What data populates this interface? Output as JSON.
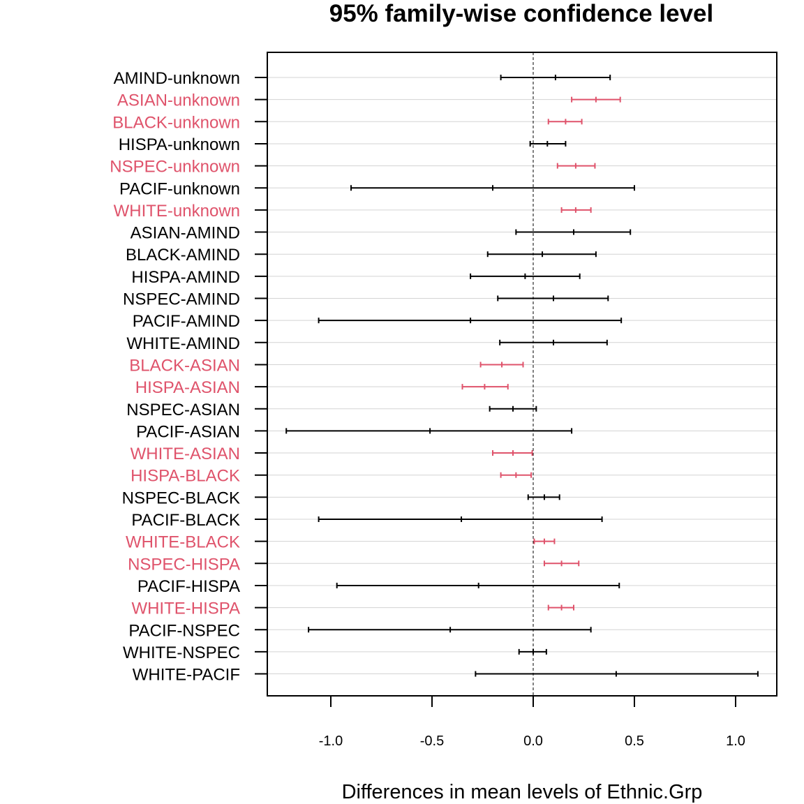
{
  "chart_data": {
    "type": "errorbar",
    "title": "95% family-wise confidence level",
    "xlabel": "Differences in mean levels of Ethnic.Grp",
    "ylabel": "",
    "xlim": [
      -1.31,
      1.2
    ],
    "xticks": [
      -1.0,
      -0.5,
      0.0,
      0.5,
      1.0
    ],
    "xtick_labels": [
      "-1.0",
      "-0.5",
      "0.0",
      "0.5",
      "1.0"
    ],
    "reference_line": 0.0,
    "grid": true,
    "colors": {
      "significant": "#DF536B",
      "nonsignificant": "#000000",
      "grid": "#D3D3D3"
    },
    "comparisons": [
      {
        "label": "AMIND-unknown",
        "diff": 0.11,
        "lwr": -0.16,
        "upr": 0.38,
        "significant": false
      },
      {
        "label": "ASIAN-unknown",
        "diff": 0.31,
        "lwr": 0.19,
        "upr": 0.43,
        "significant": true
      },
      {
        "label": "BLACK-unknown",
        "diff": 0.16,
        "lwr": 0.075,
        "upr": 0.24,
        "significant": true
      },
      {
        "label": "HISPA-unknown",
        "diff": 0.07,
        "lwr": -0.015,
        "upr": 0.16,
        "significant": false
      },
      {
        "label": "NSPEC-unknown",
        "diff": 0.21,
        "lwr": 0.12,
        "upr": 0.305,
        "significant": true
      },
      {
        "label": "PACIF-unknown",
        "diff": -0.2,
        "lwr": -0.9,
        "upr": 0.5,
        "significant": false
      },
      {
        "label": "WHITE-unknown",
        "diff": 0.21,
        "lwr": 0.14,
        "upr": 0.285,
        "significant": true
      },
      {
        "label": "ASIAN-AMIND",
        "diff": 0.2,
        "lwr": -0.085,
        "upr": 0.48,
        "significant": false
      },
      {
        "label": "BLACK-AMIND",
        "diff": 0.045,
        "lwr": -0.225,
        "upr": 0.31,
        "significant": false
      },
      {
        "label": "HISPA-AMIND",
        "diff": -0.04,
        "lwr": -0.31,
        "upr": 0.23,
        "significant": false
      },
      {
        "label": "NSPEC-AMIND",
        "diff": 0.1,
        "lwr": -0.175,
        "upr": 0.37,
        "significant": false
      },
      {
        "label": "PACIF-AMIND",
        "diff": -0.31,
        "lwr": -1.06,
        "upr": 0.435,
        "significant": false
      },
      {
        "label": "WHITE-AMIND",
        "diff": 0.1,
        "lwr": -0.165,
        "upr": 0.365,
        "significant": false
      },
      {
        "label": "BLACK-ASIAN",
        "diff": -0.155,
        "lwr": -0.26,
        "upr": -0.05,
        "significant": true
      },
      {
        "label": "HISPA-ASIAN",
        "diff": -0.24,
        "lwr": -0.35,
        "upr": -0.125,
        "significant": true
      },
      {
        "label": "NSPEC-ASIAN",
        "diff": -0.1,
        "lwr": -0.215,
        "upr": 0.015,
        "significant": false
      },
      {
        "label": "PACIF-ASIAN",
        "diff": -0.51,
        "lwr": -1.22,
        "upr": 0.19,
        "significant": false
      },
      {
        "label": "WHITE-ASIAN",
        "diff": -0.1,
        "lwr": -0.2,
        "upr": -0.005,
        "significant": true
      },
      {
        "label": "HISPA-BLACK",
        "diff": -0.085,
        "lwr": -0.16,
        "upr": -0.01,
        "significant": true
      },
      {
        "label": "NSPEC-BLACK",
        "diff": 0.055,
        "lwr": -0.025,
        "upr": 0.13,
        "significant": false
      },
      {
        "label": "PACIF-BLACK",
        "diff": -0.355,
        "lwr": -1.06,
        "upr": 0.34,
        "significant": false
      },
      {
        "label": "WHITE-BLACK",
        "diff": 0.055,
        "lwr": 0.005,
        "upr": 0.105,
        "significant": true
      },
      {
        "label": "NSPEC-HISPA",
        "diff": 0.14,
        "lwr": 0.055,
        "upr": 0.225,
        "significant": true
      },
      {
        "label": "PACIF-HISPA",
        "diff": -0.27,
        "lwr": -0.97,
        "upr": 0.425,
        "significant": false
      },
      {
        "label": "WHITE-HISPA",
        "diff": 0.14,
        "lwr": 0.075,
        "upr": 0.2,
        "significant": true
      },
      {
        "label": "PACIF-NSPEC",
        "diff": -0.41,
        "lwr": -1.11,
        "upr": 0.285,
        "significant": false
      },
      {
        "label": "WHITE-NSPEC",
        "diff": 0.0,
        "lwr": -0.07,
        "upr": 0.065,
        "significant": false
      },
      {
        "label": "WHITE-PACIF",
        "diff": 0.41,
        "lwr": -0.285,
        "upr": 1.11,
        "significant": false
      }
    ]
  }
}
